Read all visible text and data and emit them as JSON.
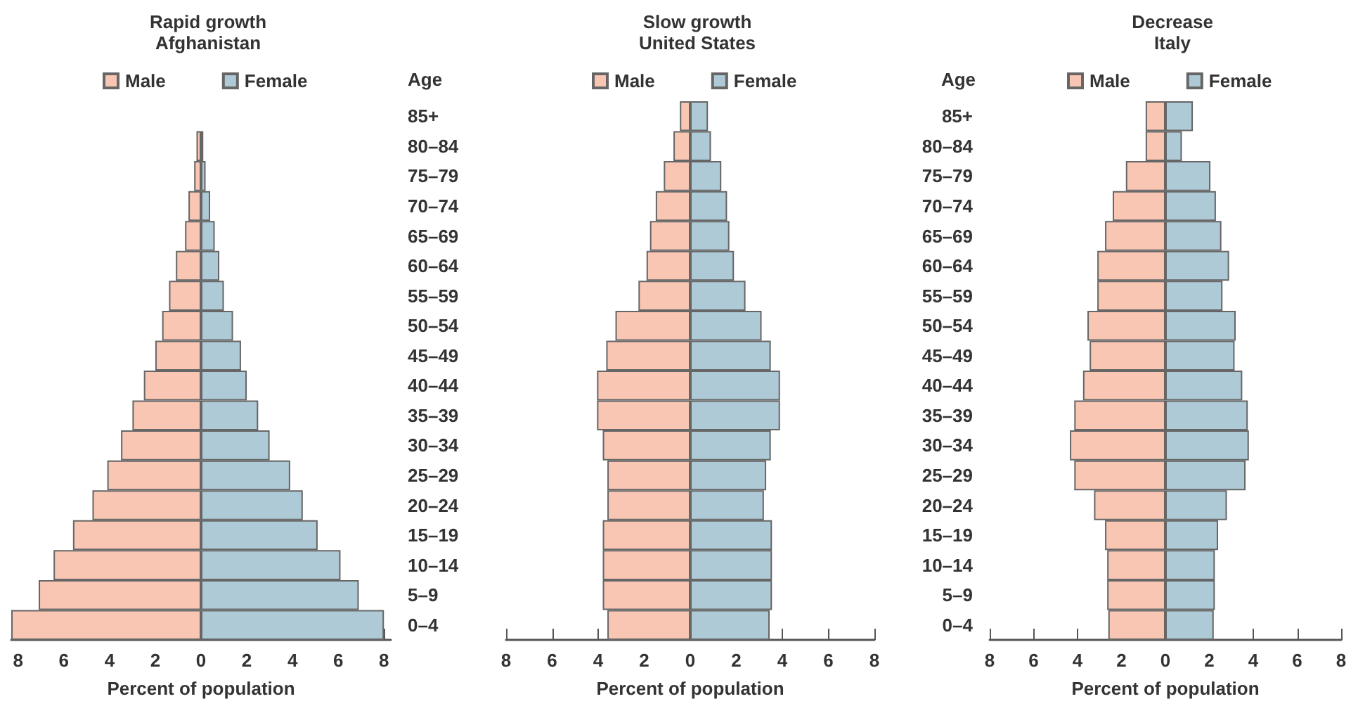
{
  "chart_data": [
    {
      "type": "bar",
      "orientation": "horizontal",
      "stacked": true,
      "title": "Rapid growth",
      "subtitle": "Afghanistan",
      "xlabel": "Percent of population",
      "ylabel": "Age",
      "legend": "top",
      "categories": [
        "85+",
        "80–84",
        "75–79",
        "70–74",
        "65–69",
        "60–64",
        "55–59",
        "50–54",
        "45–49",
        "40–44",
        "35–39",
        "30–34",
        "25–29",
        "20–24",
        "15–19",
        "10–14",
        "5–9",
        "0–4"
      ],
      "series": [
        {
          "name": "Male",
          "color": "#f8c6b3",
          "values": [
            null,
            -0.2,
            -0.3,
            -0.55,
            -0.7,
            -1.1,
            -1.4,
            -1.7,
            -2.0,
            -2.5,
            -3.0,
            -3.5,
            -4.1,
            -4.75,
            -5.6,
            -6.45,
            -7.1,
            -8.3
          ]
        },
        {
          "name": "Female",
          "color": "#aecad7",
          "values": [
            null,
            0.1,
            0.2,
            0.4,
            0.6,
            0.8,
            1.0,
            1.4,
            1.75,
            2.0,
            2.5,
            3.0,
            3.9,
            4.45,
            5.1,
            6.1,
            6.9,
            8.0
          ]
        }
      ],
      "xlim": [
        -8.3,
        8.3
      ],
      "xticks": [
        {
          "value": -8,
          "label": "8"
        },
        {
          "value": -6,
          "label": "6"
        },
        {
          "value": -4,
          "label": "4"
        },
        {
          "value": -2,
          "label": "2"
        },
        0,
        2,
        4,
        6,
        8
      ]
    },
    {
      "type": "bar",
      "orientation": "horizontal",
      "stacked": true,
      "title": "Slow growth",
      "subtitle": "United States",
      "xlabel": "Percent of population",
      "legend": "top",
      "tick_labels": "x",
      "categories": [
        null,
        null,
        null,
        null,
        null,
        null,
        null,
        null,
        null,
        null,
        null,
        null,
        null,
        null,
        null,
        null,
        null,
        null
      ],
      "series": [
        {
          "name": "Male",
          "color": "#f8c6b3",
          "values": [
            -0.45,
            -0.73,
            -1.15,
            -1.5,
            -1.75,
            -1.9,
            -2.25,
            -3.25,
            -3.65,
            -4.05,
            -4.05,
            -3.8,
            -3.6,
            -3.6,
            -3.8,
            -3.8,
            -3.8,
            -3.6
          ]
        },
        {
          "name": "Female",
          "color": "#aecad7",
          "values": [
            0.77,
            0.9,
            1.35,
            1.6,
            1.7,
            1.9,
            2.4,
            3.1,
            3.5,
            3.9,
            3.9,
            3.5,
            3.3,
            3.2,
            3.55,
            3.55,
            3.55,
            3.45
          ]
        }
      ],
      "xlim": [
        -8,
        8
      ],
      "xticks": [
        {
          "value": -8,
          "label": "8"
        },
        {
          "value": -6,
          "label": "6"
        },
        {
          "value": -4,
          "label": "4"
        },
        {
          "value": -2,
          "label": "2"
        },
        0,
        2,
        4,
        6,
        8
      ]
    },
    {
      "type": "bar",
      "orientation": "horizontal",
      "stacked": true,
      "title": "Decrease",
      "subtitle": "Italy",
      "xlabel": "Percent of population",
      "ylabel": "Age",
      "legend": "top",
      "categories": [
        "85+",
        "80–84",
        "75–79",
        "70–74",
        "65–69",
        "60–64",
        "55–59",
        "50–54",
        "45–49",
        "40–44",
        "35–39",
        "30–34",
        "25–29",
        "20–24",
        "15–19",
        "10–14",
        "5–9",
        "0–4"
      ],
      "series": [
        {
          "name": "Male",
          "color": "#f8c6b3",
          "values": [
            -0.9,
            -0.9,
            -1.8,
            -2.4,
            -2.75,
            -3.1,
            -3.1,
            -3.55,
            -3.45,
            -3.75,
            -4.15,
            -4.35,
            -4.15,
            -3.25,
            -2.75,
            -2.65,
            -2.65,
            -2.6
          ]
        },
        {
          "name": "Female",
          "color": "#aecad7",
          "values": [
            1.25,
            0.75,
            2.05,
            2.3,
            2.55,
            2.9,
            2.6,
            3.2,
            3.15,
            3.5,
            3.75,
            3.8,
            3.65,
            2.8,
            2.4,
            2.25,
            2.25,
            2.2
          ]
        }
      ],
      "xlim": [
        -8,
        8
      ],
      "xticks": [
        {
          "value": -8,
          "label": "8"
        },
        {
          "value": -6,
          "label": "6"
        },
        {
          "value": -4,
          "label": "4"
        },
        {
          "value": -2,
          "label": "2"
        },
        0,
        2,
        4,
        6,
        8
      ]
    }
  ]
}
